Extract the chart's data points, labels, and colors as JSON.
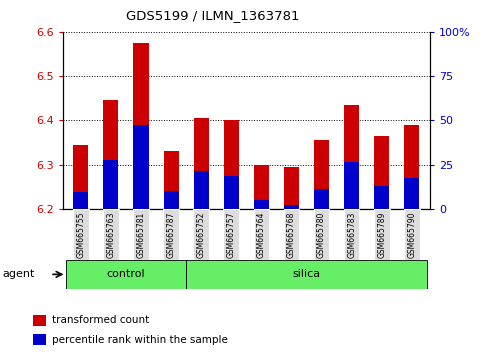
{
  "title": "GDS5199 / ILMN_1363781",
  "samples": [
    "GSM665755",
    "GSM665763",
    "GSM665781",
    "GSM665787",
    "GSM665752",
    "GSM665757",
    "GSM665764",
    "GSM665768",
    "GSM665780",
    "GSM665783",
    "GSM665789",
    "GSM665790"
  ],
  "transformed_count": [
    6.345,
    6.445,
    6.575,
    6.33,
    6.405,
    6.4,
    6.3,
    6.295,
    6.355,
    6.435,
    6.365,
    6.39
  ],
  "percentile_rank": [
    6.238,
    6.31,
    6.39,
    6.24,
    6.285,
    6.275,
    6.22,
    6.208,
    6.245,
    6.305,
    6.252,
    6.27
  ],
  "ylim_left": [
    6.2,
    6.6
  ],
  "ylim_right": [
    0,
    100
  ],
  "yticks_left": [
    6.2,
    6.3,
    6.4,
    6.5,
    6.6
  ],
  "yticks_right": [
    0,
    25,
    50,
    75,
    100
  ],
  "ytick_labels_right": [
    "0",
    "25",
    "50",
    "75",
    "100%"
  ],
  "groups": [
    {
      "label": "control",
      "indices": [
        0,
        1,
        2,
        3
      ],
      "color": "#66EE66"
    },
    {
      "label": "silica",
      "indices": [
        4,
        5,
        6,
        7,
        8,
        9,
        10,
        11
      ],
      "color": "#66EE66"
    }
  ],
  "bar_color": "#CC0000",
  "percentile_color": "#0000CC",
  "bar_width": 0.5,
  "grid_color": "black",
  "background_color": "#FFFFFF",
  "tick_color_left": "#CC0000",
  "tick_color_right": "#0000CC",
  "agent_label": "agent",
  "legend": [
    {
      "label": "transformed count",
      "color": "#CC0000"
    },
    {
      "label": "percentile rank within the sample",
      "color": "#0000CC"
    }
  ]
}
